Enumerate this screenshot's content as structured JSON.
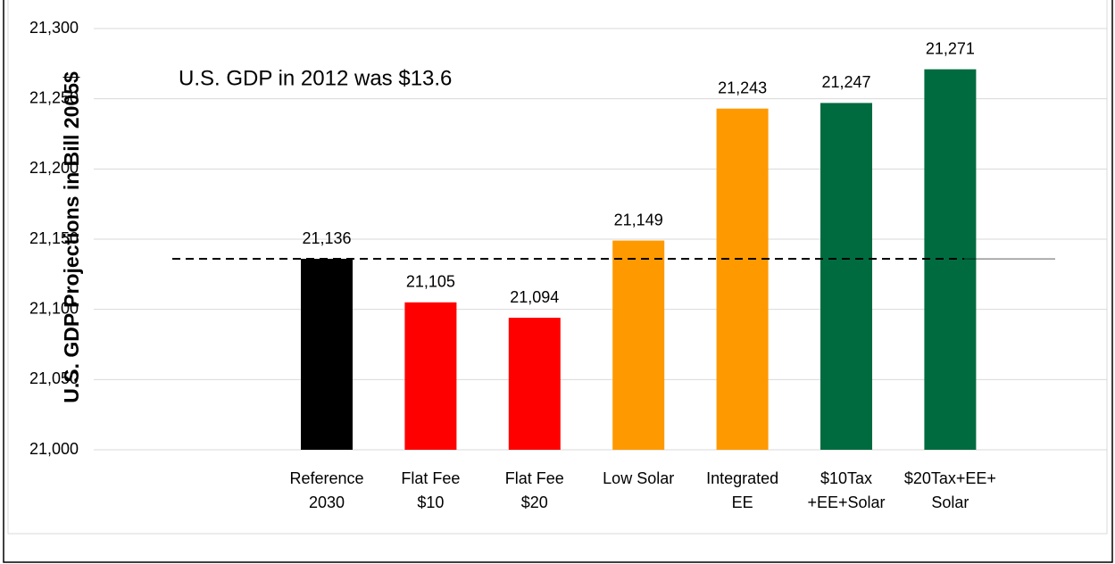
{
  "chart_data": {
    "type": "bar",
    "y_label": "U.S. GDP Projections in Bill 2005$",
    "annotation": "U.S. GDP in 2012 was $13.6",
    "categories": [
      [
        "Reference",
        "2030"
      ],
      [
        "Flat Fee",
        "$10"
      ],
      [
        "Flat Fee",
        "$20"
      ],
      [
        "Low Solar"
      ],
      [
        "Integrated",
        "EE"
      ],
      [
        "$10Tax",
        "+EE+Solar"
      ],
      [
        "$20Tax+EE+",
        "Solar"
      ]
    ],
    "values": [
      21136,
      21105,
      21094,
      21149,
      21243,
      21247,
      21271
    ],
    "value_labels": [
      "21,136",
      "21,105",
      "21,094",
      "21,149",
      "21,243",
      "21,247",
      "21,271"
    ],
    "colors": [
      "#000000",
      "#ff0000",
      "#ff0000",
      "#ff9900",
      "#ff9900",
      "#006b3f",
      "#006b3f"
    ],
    "ylim": [
      21000,
      21300
    ],
    "yticks": [
      {
        "value": 21000,
        "label": "21,000"
      },
      {
        "value": 21050,
        "label": "21,050"
      },
      {
        "value": 21100,
        "label": "21,100"
      },
      {
        "value": 21150,
        "label": "21,150"
      },
      {
        "value": 21200,
        "label": "21,200"
      },
      {
        "value": 21250,
        "label": "21,250"
      },
      {
        "value": 21300,
        "label": "21,300"
      }
    ],
    "grid": true
  }
}
